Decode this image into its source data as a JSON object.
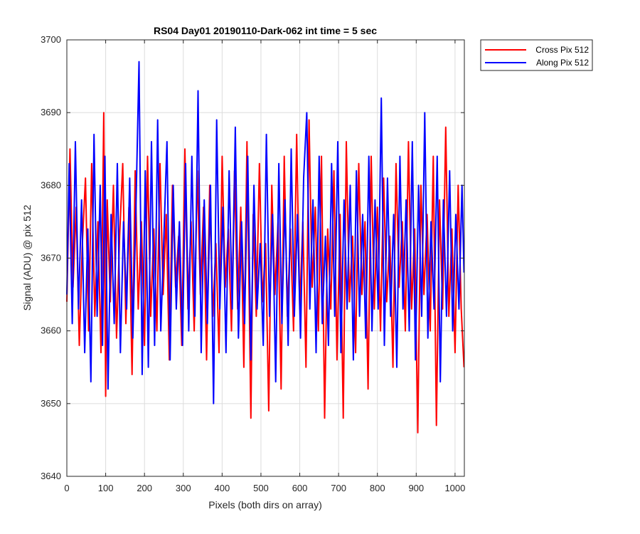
{
  "chart_data": {
    "type": "line",
    "title": "RS04 Day01 20190110-Dark-062 int time = 5 sec",
    "xlabel": "Pixels (both dirs on array)",
    "ylabel": "Signal (ADU) @ pix 512",
    "xlim": [
      0,
      1024
    ],
    "ylim": [
      3640,
      3700
    ],
    "xticks": [
      0,
      100,
      200,
      300,
      400,
      500,
      600,
      700,
      800,
      900,
      1000
    ],
    "yticks": [
      3640,
      3650,
      3660,
      3670,
      3680,
      3690,
      3700
    ],
    "grid": true,
    "legend_position": "outside-top-right",
    "series": [
      {
        "name": "Cross Pix 512",
        "color": "#ff0000",
        "x": [
          0,
          8,
          16,
          24,
          32,
          40,
          48,
          56,
          64,
          72,
          80,
          88,
          95,
          100,
          104,
          112,
          120,
          128,
          136,
          144,
          152,
          160,
          168,
          176,
          184,
          192,
          200,
          208,
          216,
          224,
          232,
          240,
          248,
          256,
          264,
          272,
          280,
          288,
          296,
          304,
          312,
          320,
          328,
          336,
          344,
          352,
          360,
          368,
          376,
          384,
          392,
          400,
          408,
          416,
          424,
          432,
          440,
          448,
          456,
          464,
          474,
          480,
          488,
          496,
          504,
          512,
          520,
          528,
          536,
          544,
          552,
          560,
          568,
          576,
          584,
          592,
          600,
          608,
          616,
          624,
          632,
          640,
          648,
          656,
          664,
          672,
          680,
          688,
          696,
          704,
          712,
          720,
          728,
          736,
          744,
          752,
          760,
          768,
          776,
          784,
          792,
          800,
          808,
          816,
          824,
          832,
          840,
          848,
          856,
          864,
          872,
          880,
          888,
          896,
          904,
          912,
          920,
          928,
          936,
          944,
          952,
          960,
          968,
          976,
          984,
          992,
          1000,
          1008,
          1016,
          1023
        ],
        "values": [
          3664,
          3685,
          3666,
          3677,
          3658,
          3672,
          3681,
          3660,
          3683,
          3662,
          3675,
          3657,
          3690,
          3651,
          3678,
          3664,
          3680,
          3659,
          3673,
          3683,
          3661,
          3677,
          3654,
          3682,
          3663,
          3675,
          3658,
          3684,
          3662,
          3674,
          3660,
          3683,
          3665,
          3676,
          3656,
          3680,
          3666,
          3673,
          3658,
          3685,
          3663,
          3675,
          3660,
          3682,
          3665,
          3677,
          3656,
          3680,
          3662,
          3672,
          3657,
          3684,
          3666,
          3674,
          3660,
          3682,
          3663,
          3677,
          3655,
          3686,
          3648,
          3676,
          3662,
          3683,
          3664,
          3672,
          3649,
          3680,
          3665,
          3675,
          3652,
          3684,
          3662,
          3674,
          3660,
          3687,
          3663,
          3675,
          3655,
          3689,
          3666,
          3677,
          3660,
          3684,
          3648,
          3674,
          3663,
          3682,
          3656,
          3676,
          3648,
          3686,
          3664,
          3673,
          3657,
          3683,
          3665,
          3675,
          3652,
          3684,
          3663,
          3677,
          3660,
          3681,
          3664,
          3673,
          3655,
          3683,
          3666,
          3675,
          3660,
          3686,
          3663,
          3674,
          3646,
          3680,
          3665,
          3676,
          3660,
          3684,
          3647,
          3678,
          3663,
          3688,
          3662,
          3674,
          3657,
          3680,
          3663,
          3655
        ]
      },
      {
        "name": "Along Pix 512",
        "color": "#0000ff",
        "x": [
          0,
          6,
          14,
          22,
          30,
          38,
          46,
          54,
          62,
          70,
          78,
          86,
          92,
          98,
          106,
          114,
          122,
          130,
          138,
          146,
          154,
          162,
          170,
          178,
          186,
          194,
          202,
          210,
          218,
          226,
          234,
          242,
          250,
          258,
          266,
          274,
          282,
          290,
          298,
          306,
          314,
          322,
          330,
          338,
          346,
          354,
          362,
          370,
          378,
          386,
          394,
          402,
          410,
          418,
          426,
          434,
          442,
          450,
          458,
          466,
          474,
          482,
          490,
          498,
          506,
          514,
          522,
          530,
          538,
          546,
          554,
          562,
          570,
          578,
          586,
          594,
          602,
          610,
          618,
          626,
          634,
          642,
          650,
          658,
          666,
          674,
          682,
          690,
          698,
          706,
          714,
          722,
          730,
          738,
          746,
          754,
          762,
          770,
          778,
          786,
          794,
          802,
          810,
          818,
          826,
          834,
          842,
          850,
          858,
          866,
          874,
          882,
          890,
          898,
          906,
          914,
          922,
          930,
          938,
          946,
          954,
          962,
          970,
          978,
          986,
          994,
          1002,
          1010,
          1018,
          1023
        ],
        "values": [
          3665,
          3683,
          3661,
          3686,
          3663,
          3678,
          3657,
          3674,
          3653,
          3687,
          3662,
          3680,
          3658,
          3684,
          3652,
          3676,
          3661,
          3683,
          3657,
          3675,
          3663,
          3681,
          3659,
          3677,
          3697,
          3654,
          3682,
          3655,
          3686,
          3658,
          3689,
          3660,
          3673,
          3686,
          3656,
          3680,
          3663,
          3675,
          3658,
          3683,
          3660,
          3684,
          3662,
          3693,
          3657,
          3678,
          3661,
          3680,
          3650,
          3689,
          3663,
          3677,
          3657,
          3682,
          3663,
          3688,
          3659,
          3675,
          3661,
          3684,
          3656,
          3680,
          3663,
          3672,
          3658,
          3687,
          3662,
          3676,
          3653,
          3683,
          3661,
          3678,
          3658,
          3685,
          3662,
          3676,
          3659,
          3681,
          3690,
          3663,
          3678,
          3657,
          3684,
          3661,
          3673,
          3658,
          3683,
          3662,
          3686,
          3657,
          3678,
          3663,
          3680,
          3656,
          3682,
          3662,
          3676,
          3659,
          3684,
          3660,
          3678,
          3663,
          3692,
          3658,
          3681,
          3662,
          3676,
          3655,
          3684,
          3663,
          3678,
          3660,
          3686,
          3656,
          3680,
          3662,
          3690,
          3659,
          3675,
          3663,
          3684,
          3653,
          3678,
          3662,
          3682,
          3660,
          3676,
          3663,
          3680,
          3668
        ]
      }
    ]
  }
}
